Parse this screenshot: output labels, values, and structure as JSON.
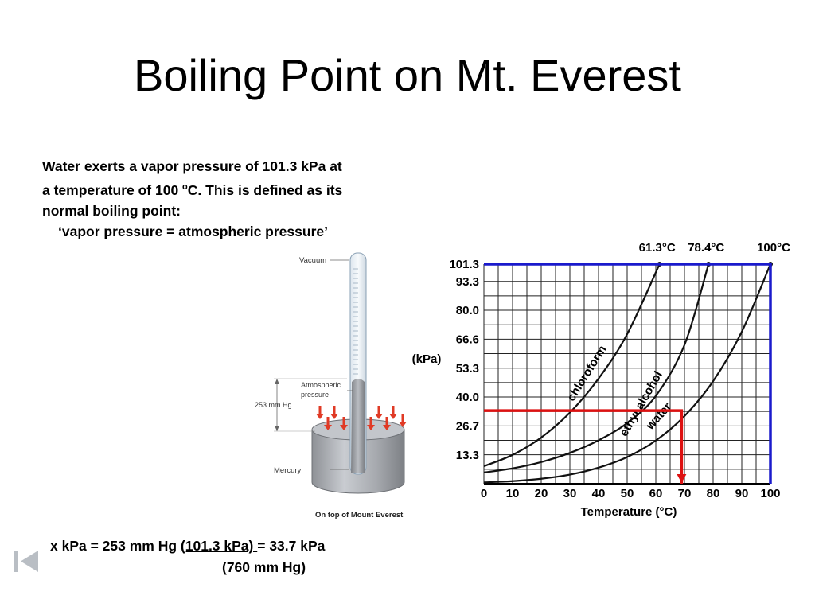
{
  "title": "Boiling Point on Mt. Everest",
  "intro": {
    "line1": "Water exerts a vapor pressure of 101.3 kPa at",
    "line2_pre": "a temperature of 100 ",
    "line2_sup": "o",
    "line2_post": "C.  This is defined as its",
    "line3": "normal boiling point:",
    "quote": "‘vapor pressure  =  atmospheric pressure’"
  },
  "figure": {
    "vacuum": "Vacuum",
    "atm1": "Atmospheric",
    "atm2": "pressure",
    "height": "253 mm Hg",
    "mercury": "Mercury",
    "caption": "On top of Mount Everest"
  },
  "chart_data": {
    "type": "line",
    "xlabel": "Temperature (°C)",
    "ylabel": "(kPa)",
    "x_ticks": [
      0,
      10,
      20,
      30,
      40,
      50,
      60,
      70,
      80,
      90,
      100
    ],
    "y_ticks": [
      13.3,
      26.7,
      40.0,
      53.3,
      66.6,
      80.0,
      93.3,
      101.3
    ],
    "y_tick_labels": [
      "13.3",
      "26.7",
      "40.0",
      "53.3",
      "66.6",
      "80.0",
      "93.3",
      "101.3"
    ],
    "xlim": [
      0,
      100
    ],
    "ylim": [
      0,
      101.3
    ],
    "grid": true,
    "top_labels": [
      "61.3°C",
      "78.4°C",
      "100°C"
    ],
    "series": [
      {
        "name": "chloroform",
        "x": [
          0,
          10,
          20,
          30,
          40,
          50,
          61.3
        ],
        "y": [
          8.1,
          13.3,
          21.3,
          32.8,
          48.5,
          69.0,
          101.3
        ]
      },
      {
        "name": "ethyl alcohol",
        "x": [
          0,
          10,
          20,
          30,
          40,
          50,
          60,
          70,
          78.4
        ],
        "y": [
          5.2,
          7.1,
          10.0,
          14.2,
          20.0,
          28.0,
          40.5,
          64.0,
          101.3
        ]
      },
      {
        "name": "water",
        "x": [
          0,
          10,
          20,
          30,
          40,
          50,
          60,
          70,
          80,
          90,
          100
        ],
        "y": [
          0.6,
          1.2,
          2.3,
          4.2,
          7.4,
          12.3,
          19.9,
          31.2,
          47.3,
          70.1,
          101.3
        ]
      }
    ],
    "markers": [
      {
        "color": "#1a1acc",
        "path": [
          [
            0,
            101.3
          ],
          [
            100,
            101.3
          ],
          [
            100,
            0
          ]
        ]
      },
      {
        "color": "#dd1111",
        "path": [
          [
            0,
            33.7
          ],
          [
            69,
            33.7
          ],
          [
            69,
            0
          ]
        ]
      }
    ]
  },
  "formula": {
    "left": "x kPa = 253 mm Hg ",
    "num": " (101.3 kPa) ",
    "right": " =  33.7 kPa",
    "den": "(760 mm Hg)"
  },
  "nav": {
    "first_icon": "skip-to-start-icon"
  },
  "colors": {
    "blue_marker": "#1a1acc",
    "red_marker": "#dd1111"
  }
}
